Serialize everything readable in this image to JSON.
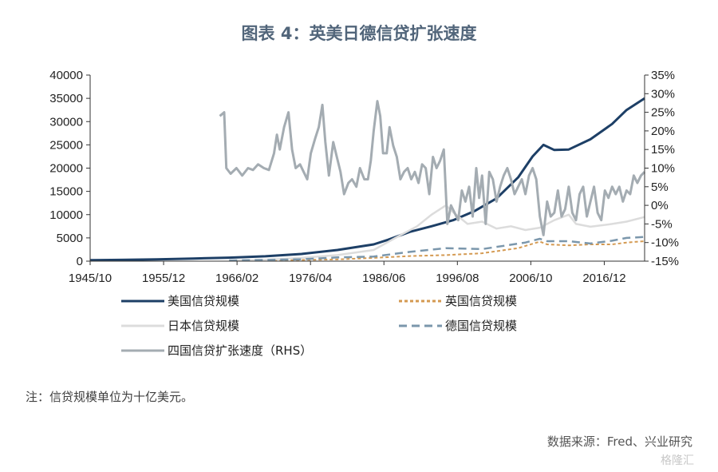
{
  "title": "图表 4：英美日德信贷扩张速度",
  "note": "注：信贷规模单位为十亿美元。",
  "source": "数据来源：Fred、兴业研究",
  "watermark": "格隆汇",
  "chart_data": {
    "type": "line",
    "x_ticks": [
      "1945/10",
      "1955/12",
      "1966/02",
      "1976/04",
      "1986/06",
      "1996/08",
      "2006/10",
      "2016/12"
    ],
    "x_range": [
      1945.75,
      2022.5
    ],
    "y_left": {
      "ticks": [
        0,
        5000,
        10000,
        15000,
        20000,
        25000,
        30000,
        35000,
        40000
      ],
      "range": [
        0,
        40000
      ]
    },
    "y_right": {
      "ticks": [
        "35%",
        "30%",
        "25%",
        "20%",
        "15%",
        "10%",
        "5%",
        "0%",
        "-5%",
        "-10%",
        "-15%"
      ],
      "range": [
        -15,
        35
      ]
    },
    "series": [
      {
        "name": "美国信贷规模",
        "axis": "left",
        "color": "#1d3f66",
        "dash": "solid",
        "width": 3,
        "points": [
          [
            1945.75,
            200
          ],
          [
            1950,
            280
          ],
          [
            1955,
            400
          ],
          [
            1960,
            560
          ],
          [
            1965,
            760
          ],
          [
            1970,
            1050
          ],
          [
            1975,
            1550
          ],
          [
            1980,
            2400
          ],
          [
            1985,
            3600
          ],
          [
            1987,
            4600
          ],
          [
            1990,
            6300
          ],
          [
            1993,
            7500
          ],
          [
            1996,
            8800
          ],
          [
            1999,
            10800
          ],
          [
            2002,
            13500
          ],
          [
            2005,
            18000
          ],
          [
            2007,
            22500
          ],
          [
            2008.5,
            25000
          ],
          [
            2010,
            23900
          ],
          [
            2012,
            24000
          ],
          [
            2015,
            26200
          ],
          [
            2018,
            29500
          ],
          [
            2020,
            32500
          ],
          [
            2021.5,
            34000
          ],
          [
            2022.5,
            35000
          ]
        ]
      },
      {
        "name": "英国信贷规模",
        "axis": "left",
        "color": "#d49a52",
        "dash": "4,3",
        "width": 2,
        "points": [
          [
            1965,
            150
          ],
          [
            1970,
            200
          ],
          [
            1975,
            250
          ],
          [
            1980,
            380
          ],
          [
            1985,
            700
          ],
          [
            1990,
            1100
          ],
          [
            1995,
            1300
          ],
          [
            2000,
            1700
          ],
          [
            2005,
            2800
          ],
          [
            2008,
            4200
          ],
          [
            2009,
            3600
          ],
          [
            2012,
            3400
          ],
          [
            2015,
            3600
          ],
          [
            2018,
            3600
          ],
          [
            2020,
            4000
          ],
          [
            2022.5,
            4300
          ]
        ]
      },
      {
        "name": "日本信贷规模",
        "axis": "left",
        "color": "#dcdcdc",
        "dash": "solid",
        "width": 2.5,
        "points": [
          [
            1965,
            100
          ],
          [
            1970,
            300
          ],
          [
            1975,
            700
          ],
          [
            1980,
            1300
          ],
          [
            1985,
            2400
          ],
          [
            1988,
            5000
          ],
          [
            1991,
            7500
          ],
          [
            1993,
            10000
          ],
          [
            1995,
            12000
          ],
          [
            1996,
            10500
          ],
          [
            1998,
            8000
          ],
          [
            2000,
            8500
          ],
          [
            2002,
            7000
          ],
          [
            2004,
            7500
          ],
          [
            2006,
            6700
          ],
          [
            2008,
            7200
          ],
          [
            2010,
            8800
          ],
          [
            2012,
            10000
          ],
          [
            2013,
            8000
          ],
          [
            2015,
            7400
          ],
          [
            2018,
            8000
          ],
          [
            2020,
            8500
          ],
          [
            2022.5,
            9500
          ]
        ]
      },
      {
        "name": "德国信贷规模",
        "axis": "left",
        "color": "#7b97ac",
        "dash": "10,6",
        "width": 2.5,
        "points": [
          [
            1965,
            150
          ],
          [
            1970,
            250
          ],
          [
            1975,
            400
          ],
          [
            1980,
            800
          ],
          [
            1985,
            1000
          ],
          [
            1990,
            2000
          ],
          [
            1995,
            2800
          ],
          [
            2000,
            2600
          ],
          [
            2003,
            3300
          ],
          [
            2006,
            4000
          ],
          [
            2008,
            4800
          ],
          [
            2009,
            4300
          ],
          [
            2012,
            4300
          ],
          [
            2015,
            3800
          ],
          [
            2018,
            4400
          ],
          [
            2020,
            5000
          ],
          [
            2022.5,
            5200
          ]
        ]
      },
      {
        "name": "四国信贷扩张速度（RHS）",
        "axis": "right",
        "color": "#a4acb2",
        "dash": "solid",
        "width": 3,
        "points": [
          [
            1963.7,
            24
          ],
          [
            1964.3,
            25
          ],
          [
            1964.6,
            10
          ],
          [
            1965.2,
            8.5
          ],
          [
            1966,
            10
          ],
          [
            1966.8,
            8
          ],
          [
            1967.6,
            10
          ],
          [
            1968.3,
            9.5
          ],
          [
            1969,
            11
          ],
          [
            1969.8,
            10
          ],
          [
            1970.5,
            9.5
          ],
          [
            1971.2,
            14
          ],
          [
            1971.6,
            19
          ],
          [
            1972,
            15
          ],
          [
            1972.6,
            21
          ],
          [
            1973.2,
            25
          ],
          [
            1973.7,
            15
          ],
          [
            1974.2,
            10
          ],
          [
            1974.8,
            11
          ],
          [
            1975.3,
            9
          ],
          [
            1975.8,
            7
          ],
          [
            1976.3,
            14
          ],
          [
            1976.9,
            18
          ],
          [
            1977.4,
            21
          ],
          [
            1977.9,
            27
          ],
          [
            1978.3,
            17
          ],
          [
            1978.8,
            8
          ],
          [
            1979.4,
            17
          ],
          [
            1979.9,
            13
          ],
          [
            1980.4,
            9
          ],
          [
            1980.9,
            3
          ],
          [
            1981.5,
            6
          ],
          [
            1982,
            7
          ],
          [
            1982.6,
            5
          ],
          [
            1983.1,
            10
          ],
          [
            1983.7,
            7
          ],
          [
            1984.2,
            7
          ],
          [
            1984.6,
            12
          ],
          [
            1985,
            20
          ],
          [
            1985.5,
            28
          ],
          [
            1985.9,
            24
          ],
          [
            1986.3,
            14
          ],
          [
            1986.8,
            14
          ],
          [
            1987.2,
            21
          ],
          [
            1987.7,
            16
          ],
          [
            1988.2,
            13
          ],
          [
            1988.7,
            7
          ],
          [
            1989.2,
            9
          ],
          [
            1989.7,
            10
          ],
          [
            1990.2,
            7
          ],
          [
            1990.7,
            9
          ],
          [
            1991.2,
            6
          ],
          [
            1991.7,
            11
          ],
          [
            1992.2,
            10
          ],
          [
            1992.7,
            3
          ],
          [
            1993.2,
            13
          ],
          [
            1993.7,
            10
          ],
          [
            1994.2,
            12
          ],
          [
            1994.7,
            15
          ],
          [
            1995.2,
            -5
          ],
          [
            1995.7,
            0
          ],
          [
            1996.2,
            -2
          ],
          [
            1996.7,
            -4
          ],
          [
            1997.2,
            4
          ],
          [
            1997.7,
            1
          ],
          [
            1998.2,
            5
          ],
          [
            1998.7,
            -3
          ],
          [
            1999.2,
            10
          ],
          [
            1999.6,
            2
          ],
          [
            2000,
            8
          ],
          [
            2000.5,
            -5
          ],
          [
            2001,
            9
          ],
          [
            2001.5,
            7
          ],
          [
            2002,
            1
          ],
          [
            2002.5,
            5
          ],
          [
            2003,
            8
          ],
          [
            2003.5,
            10
          ],
          [
            2004,
            7
          ],
          [
            2004.5,
            3
          ],
          [
            2005,
            5
          ],
          [
            2005.5,
            7
          ],
          [
            2006,
            3
          ],
          [
            2006.5,
            8
          ],
          [
            2007,
            10
          ],
          [
            2007.5,
            7
          ],
          [
            2008,
            -3
          ],
          [
            2008.5,
            -8
          ],
          [
            2009,
            1
          ],
          [
            2009.5,
            -3
          ],
          [
            2010,
            -2
          ],
          [
            2010.5,
            4
          ],
          [
            2011,
            -3
          ],
          [
            2011.5,
            -1
          ],
          [
            2012,
            5
          ],
          [
            2012.5,
            -2
          ],
          [
            2013,
            -4
          ],
          [
            2013.5,
            3
          ],
          [
            2014,
            5
          ],
          [
            2014.5,
            -3
          ],
          [
            2015,
            1
          ],
          [
            2015.5,
            5
          ],
          [
            2016,
            -2
          ],
          [
            2016.5,
            -4
          ],
          [
            2017,
            4
          ],
          [
            2017.5,
            2
          ],
          [
            2018,
            5
          ],
          [
            2018.5,
            3
          ],
          [
            2019,
            5
          ],
          [
            2019.5,
            1
          ],
          [
            2020,
            4
          ],
          [
            2020.5,
            3
          ],
          [
            2021,
            8
          ],
          [
            2021.5,
            6
          ],
          [
            2022,
            8
          ],
          [
            2022.5,
            9
          ]
        ]
      }
    ],
    "legend": [
      {
        "name": "美国信贷规模",
        "color": "#1d3f66",
        "dash": "solid"
      },
      {
        "name": "英国信贷规模",
        "color": "#d49a52",
        "dash": "4,3"
      },
      {
        "name": "日本信贷规模",
        "color": "#dcdcdc",
        "dash": "solid"
      },
      {
        "name": "德国信贷规模",
        "color": "#7b97ac",
        "dash": "10,6"
      },
      {
        "name": "四国信贷扩张速度（RHS）",
        "color": "#a4acb2",
        "dash": "solid"
      }
    ]
  }
}
